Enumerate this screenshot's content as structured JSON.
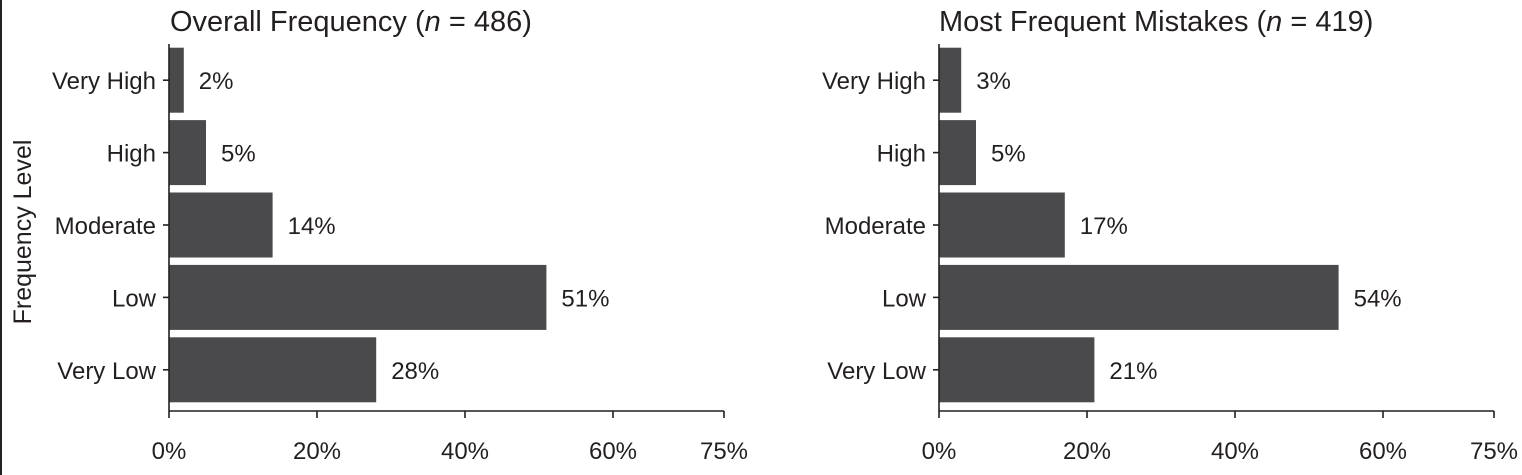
{
  "colors": {
    "bar": "#4a4a4c",
    "axis": "#231f20",
    "text": "#231f20"
  },
  "chart_data": [
    {
      "type": "bar",
      "orientation": "horizontal",
      "title_prefix": "Overall Frequency (",
      "title_var": "n",
      "title_suffix": " = 486)",
      "ylabel": "Frequency Level",
      "xlabel": "",
      "categories": [
        "Very High",
        "High",
        "Moderate",
        "Low",
        "Very Low"
      ],
      "values": [
        2,
        5,
        14,
        51,
        28
      ],
      "data_labels": [
        "2%",
        "5%",
        "14%",
        "51%",
        "28%"
      ],
      "xlim": [
        0,
        75
      ],
      "xticks": [
        0,
        20,
        40,
        60,
        75
      ],
      "xtick_labels": [
        "0%",
        "20%",
        "40%",
        "60%",
        "75%"
      ],
      "grid": false
    },
    {
      "type": "bar",
      "orientation": "horizontal",
      "title_prefix": "Most Frequent Mistakes (",
      "title_var": "n",
      "title_suffix": " = 419)",
      "ylabel": "",
      "xlabel": "",
      "categories": [
        "Very High",
        "High",
        "Moderate",
        "Low",
        "Very Low"
      ],
      "values": [
        3,
        5,
        17,
        54,
        21
      ],
      "data_labels": [
        "3%",
        "5%",
        "17%",
        "54%",
        "21%"
      ],
      "xlim": [
        0,
        75
      ],
      "xticks": [
        0,
        20,
        40,
        60,
        75
      ],
      "xtick_labels": [
        "0%",
        "20%",
        "40%",
        "60%",
        "75%"
      ],
      "grid": false
    }
  ]
}
